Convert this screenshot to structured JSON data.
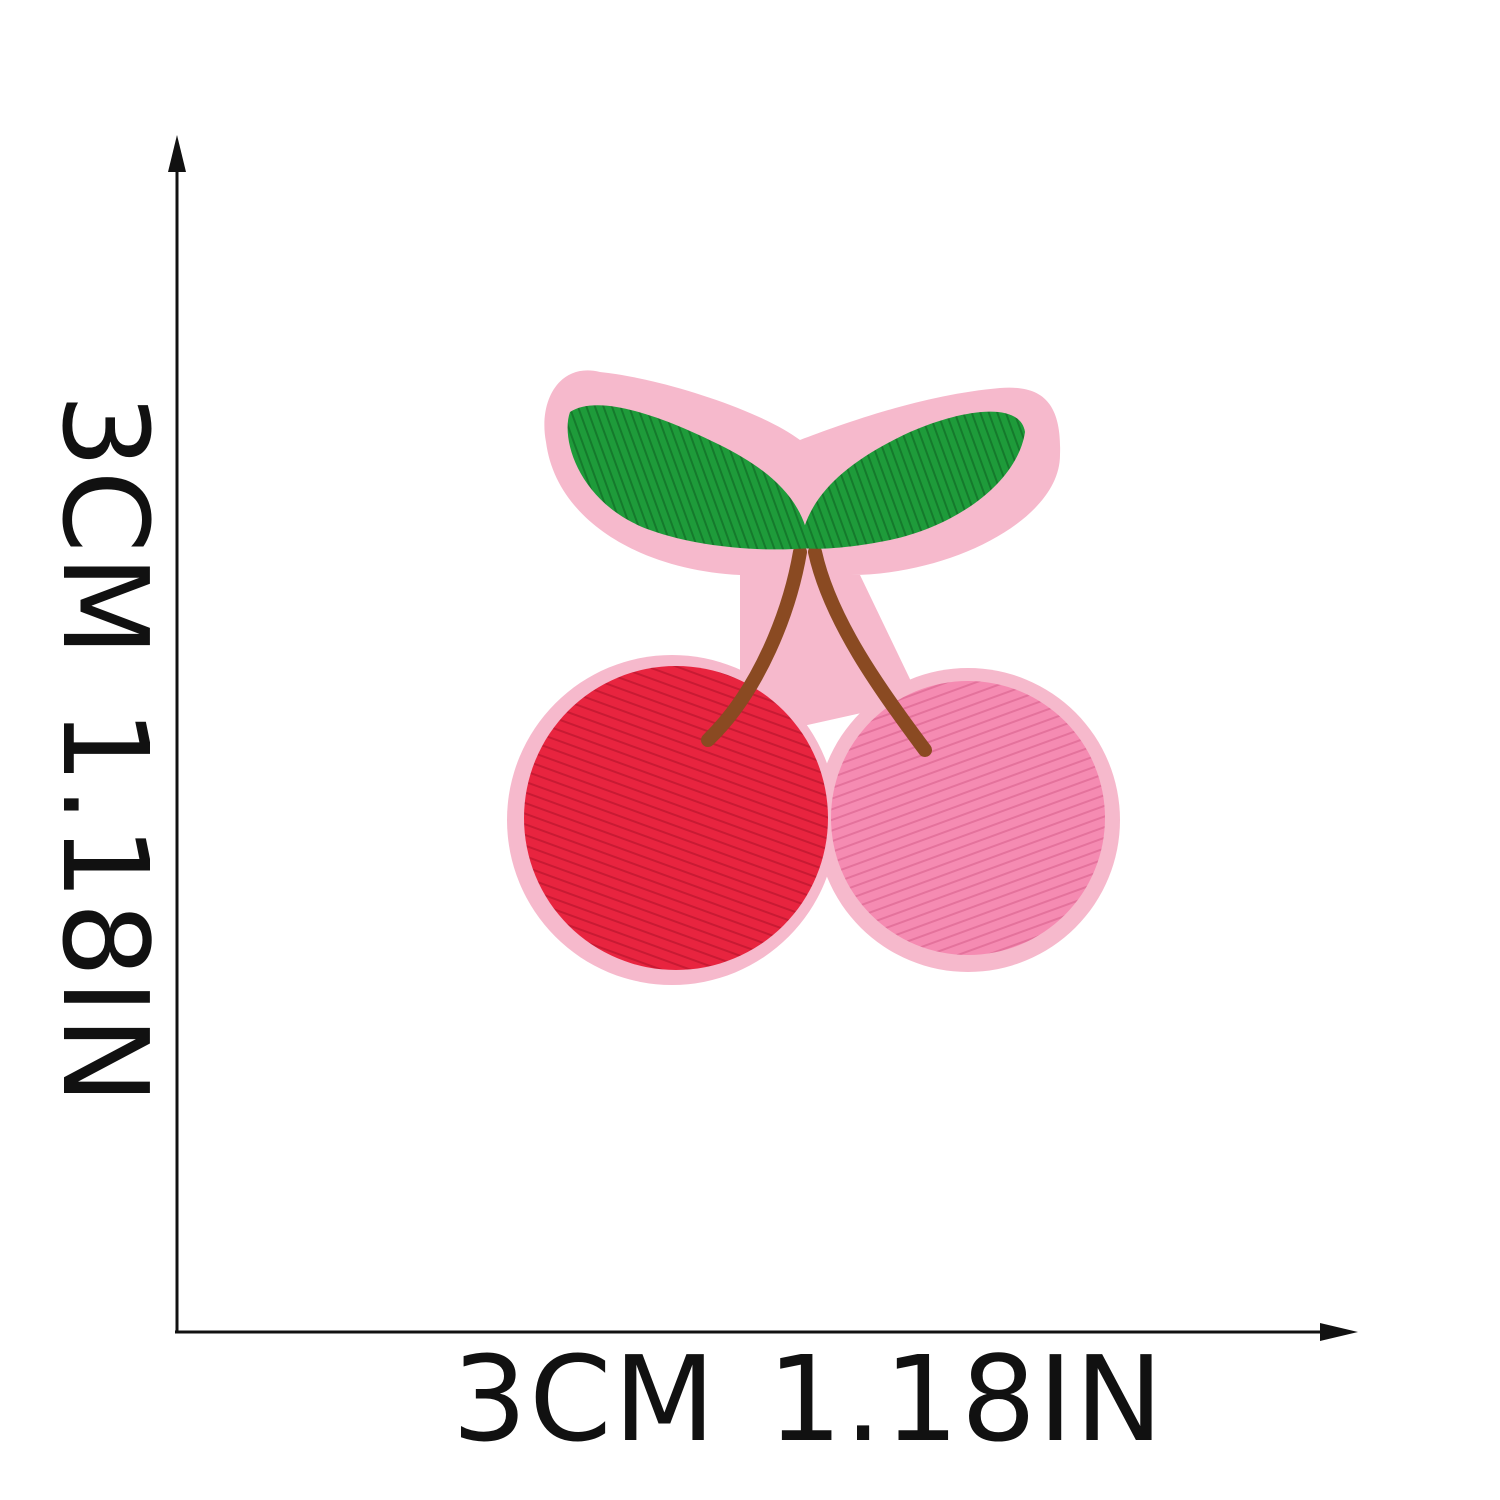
{
  "dimensions": {
    "width": {
      "cm": "3CM",
      "inch": "1.18IN"
    },
    "height": {
      "cm": "3CM",
      "inch": "1.18IN"
    }
  },
  "colors": {
    "background": "#ffffff",
    "axis": "#111111",
    "felt_border": "#f6b9cc",
    "leaf": "#1e9b3a",
    "leaf_shadow": "#157a2c",
    "stem": "#8a4a22",
    "cherry_left": "#e8243f",
    "cherry_right": "#f58bb2"
  },
  "icons": [
    "cherry-patch-image",
    "up-arrow-icon",
    "right-arrow-icon"
  ]
}
